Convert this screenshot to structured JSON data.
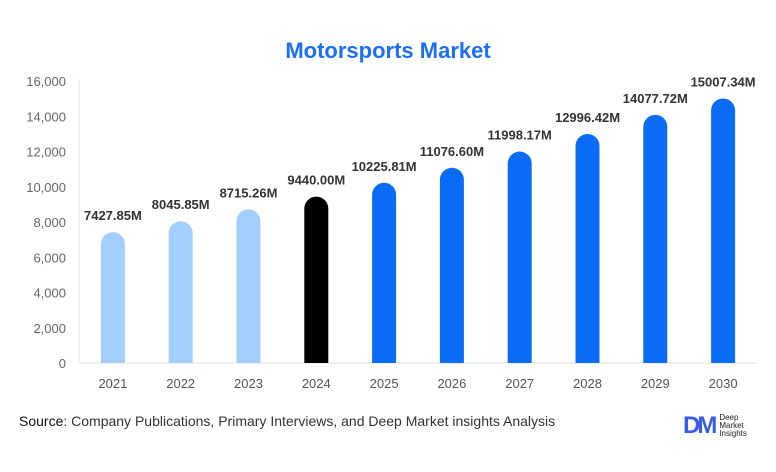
{
  "chart_data": {
    "type": "bar",
    "title": "Motorsports Market",
    "categories": [
      "2021",
      "2022",
      "2023",
      "2024",
      "2025",
      "2026",
      "2027",
      "2028",
      "2029",
      "2030"
    ],
    "values": [
      7427.85,
      8045.85,
      8715.26,
      9440.0,
      10225.81,
      11076.6,
      11998.17,
      12996.42,
      14077.72,
      15007.34
    ],
    "labels": [
      "7427.85M",
      "8045.85M",
      "8715.26M",
      "9440.00M",
      "10225.81M",
      "11076.60M",
      "11998.17M",
      "12996.42M",
      "14077.72M",
      "15007.34M"
    ],
    "ylim": [
      0,
      16000
    ],
    "yticks": [
      0,
      2000,
      4000,
      6000,
      8000,
      10000,
      12000,
      14000,
      16000
    ],
    "ytick_labels": [
      "0",
      "2,000",
      "4,000",
      "6,000",
      "8,000",
      "10,000",
      "12,000",
      "14,000",
      "16,000"
    ],
    "xlabel": "",
    "ylabel": "",
    "grid": false,
    "colors": {
      "historical": "#a3cffd",
      "current": "#000000",
      "forecast": "#0a6cf5"
    },
    "bar_kinds": [
      "historical",
      "historical",
      "historical",
      "current",
      "forecast",
      "forecast",
      "forecast",
      "forecast",
      "forecast",
      "forecast"
    ]
  },
  "source": {
    "label": "Source",
    "text": ": Company Publications, Primary Interviews, and Deep Market insights Analysis"
  },
  "logo": {
    "mark": "DM",
    "line1": "Deep",
    "line2": "Market",
    "line3": "Insights"
  }
}
